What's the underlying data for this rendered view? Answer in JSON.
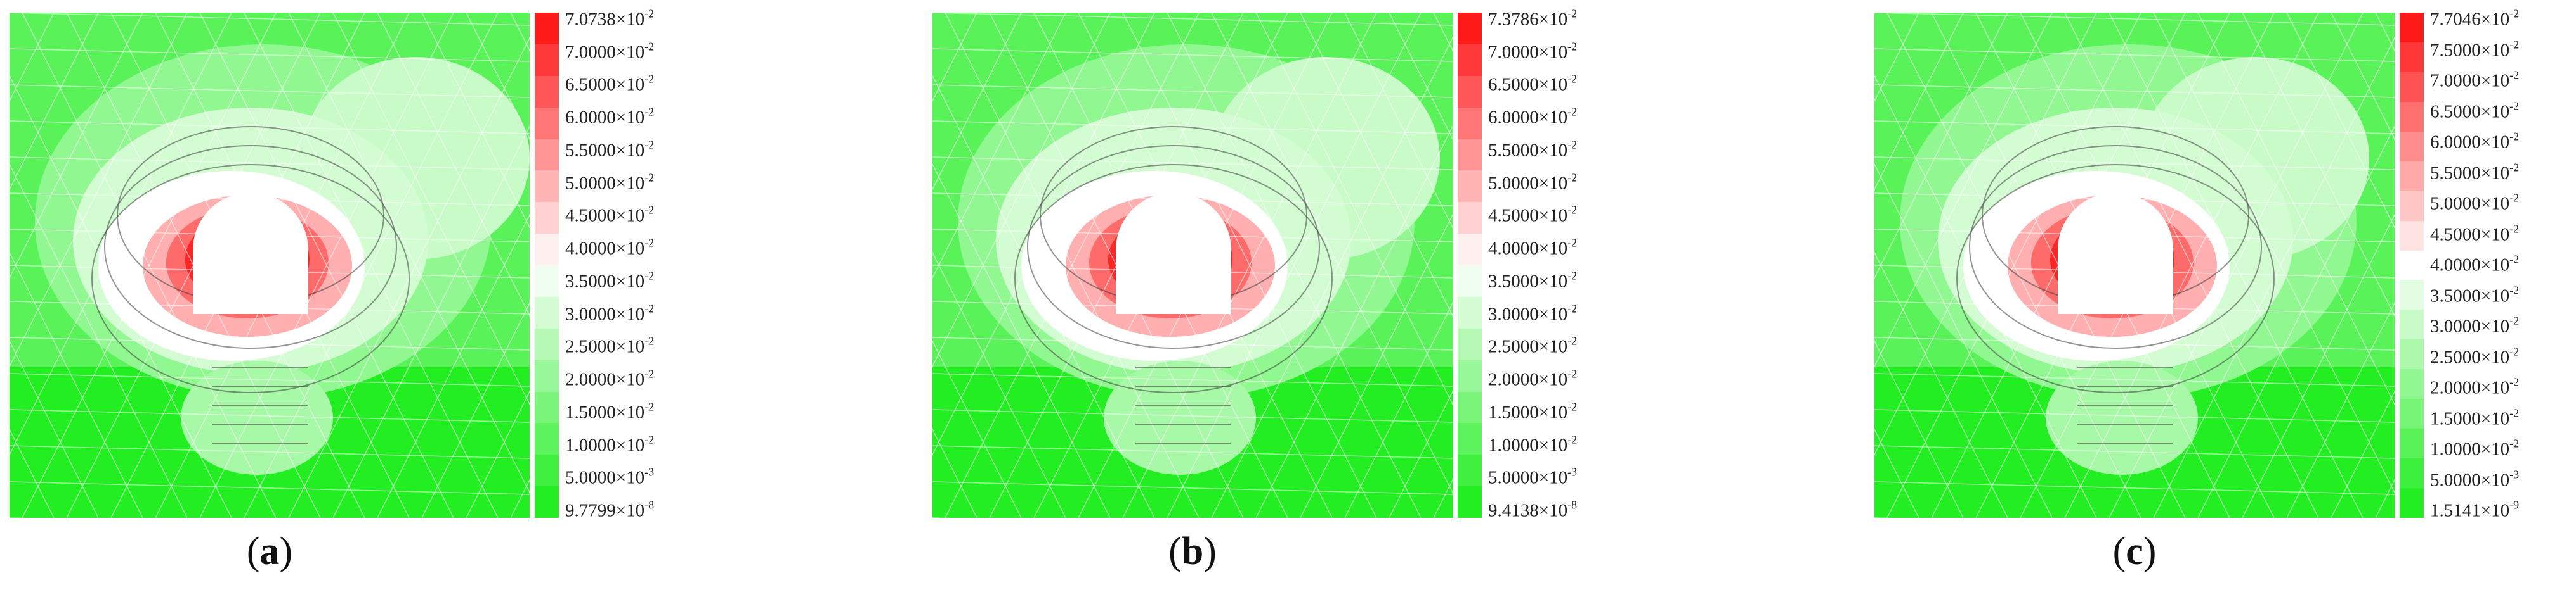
{
  "panels": [
    {
      "label": "a",
      "legend": [
        "7.0738×10-2",
        "7.0000×10-2",
        "6.5000×10-2",
        "6.0000×10-2",
        "5.5000×10-2",
        "5.0000×10-2",
        "4.5000×10-2",
        "4.0000×10-2",
        "3.5000×10-2",
        "3.0000×10-2",
        "2.5000×10-2",
        "2.0000×10-2",
        "1.5000×10-2",
        "1.0000×10-2",
        "5.0000×10-3",
        "9.7799×10-8"
      ]
    },
    {
      "label": "b",
      "legend": [
        "7.3786×10-2",
        "7.0000×10-2",
        "6.5000×10-2",
        "6.0000×10-2",
        "5.5000×10-2",
        "5.0000×10-2",
        "4.5000×10-2",
        "4.0000×10-2",
        "3.5000×10-2",
        "3.0000×10-2",
        "2.5000×10-2",
        "2.0000×10-2",
        "1.5000×10-2",
        "1.0000×10-2",
        "5.0000×10-3",
        "9.4138×10-8"
      ]
    },
    {
      "label": "c",
      "legend": [
        "7.7046×10-2",
        "7.5000×10-2",
        "7.0000×10-2",
        "6.5000×10-2",
        "6.0000×10-2",
        "5.5000×10-2",
        "5.0000×10-2",
        "4.5000×10-2",
        "4.0000×10-2",
        "3.5000×10-2",
        "3.0000×10-2",
        "2.5000×10-2",
        "2.0000×10-2",
        "1.5000×10-2",
        "1.0000×10-2",
        "5.0000×10-3",
        "1.5141×10-9"
      ]
    }
  ],
  "colors": {
    "high": "#ff1a1a",
    "mid": "#ffffff",
    "low": "#22ee22"
  }
}
